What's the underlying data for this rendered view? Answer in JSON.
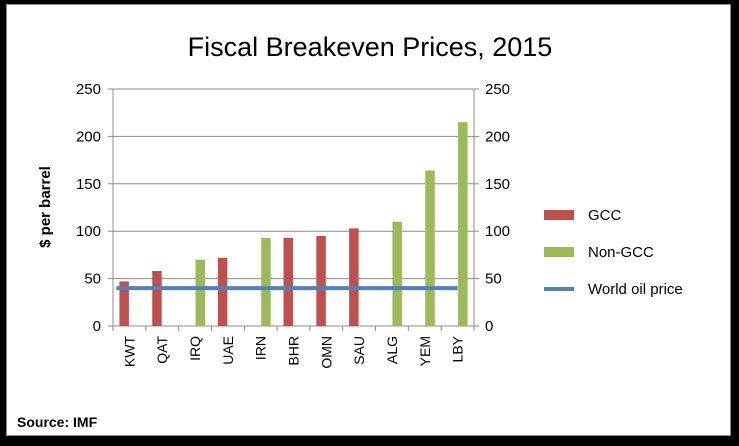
{
  "chart_data": {
    "type": "bar",
    "title": "Fiscal Breakeven Prices, 2015",
    "ylabel": "$ per barrel",
    "source": "Source: IMF",
    "categories": [
      "KWT",
      "QAT",
      "IRQ",
      "UAE",
      "IRN",
      "BHR",
      "OMN",
      "SAU",
      "ALG",
      "YEM",
      "LBY"
    ],
    "series": [
      {
        "name": "GCC",
        "type": "bar",
        "color": "#c0504d",
        "values": [
          47,
          58,
          null,
          72,
          null,
          93,
          95,
          103,
          null,
          null,
          null
        ]
      },
      {
        "name": "Non-GCC",
        "type": "bar",
        "color": "#9bbb59",
        "values": [
          null,
          null,
          70,
          null,
          93,
          null,
          null,
          null,
          110,
          164,
          215
        ]
      },
      {
        "name": "World oil price",
        "type": "line",
        "color": "#4f81bd",
        "values": [
          40,
          40,
          40,
          40,
          40,
          40,
          40,
          40,
          40,
          40,
          40
        ]
      }
    ],
    "ylim": [
      0,
      250
    ],
    "yticks": [
      "0",
      "50",
      "100",
      "150",
      "200",
      "250"
    ],
    "secondary_yticks": [
      "0",
      "50",
      "100",
      "150",
      "200",
      "250"
    ],
    "grid": true,
    "legend": "right"
  }
}
